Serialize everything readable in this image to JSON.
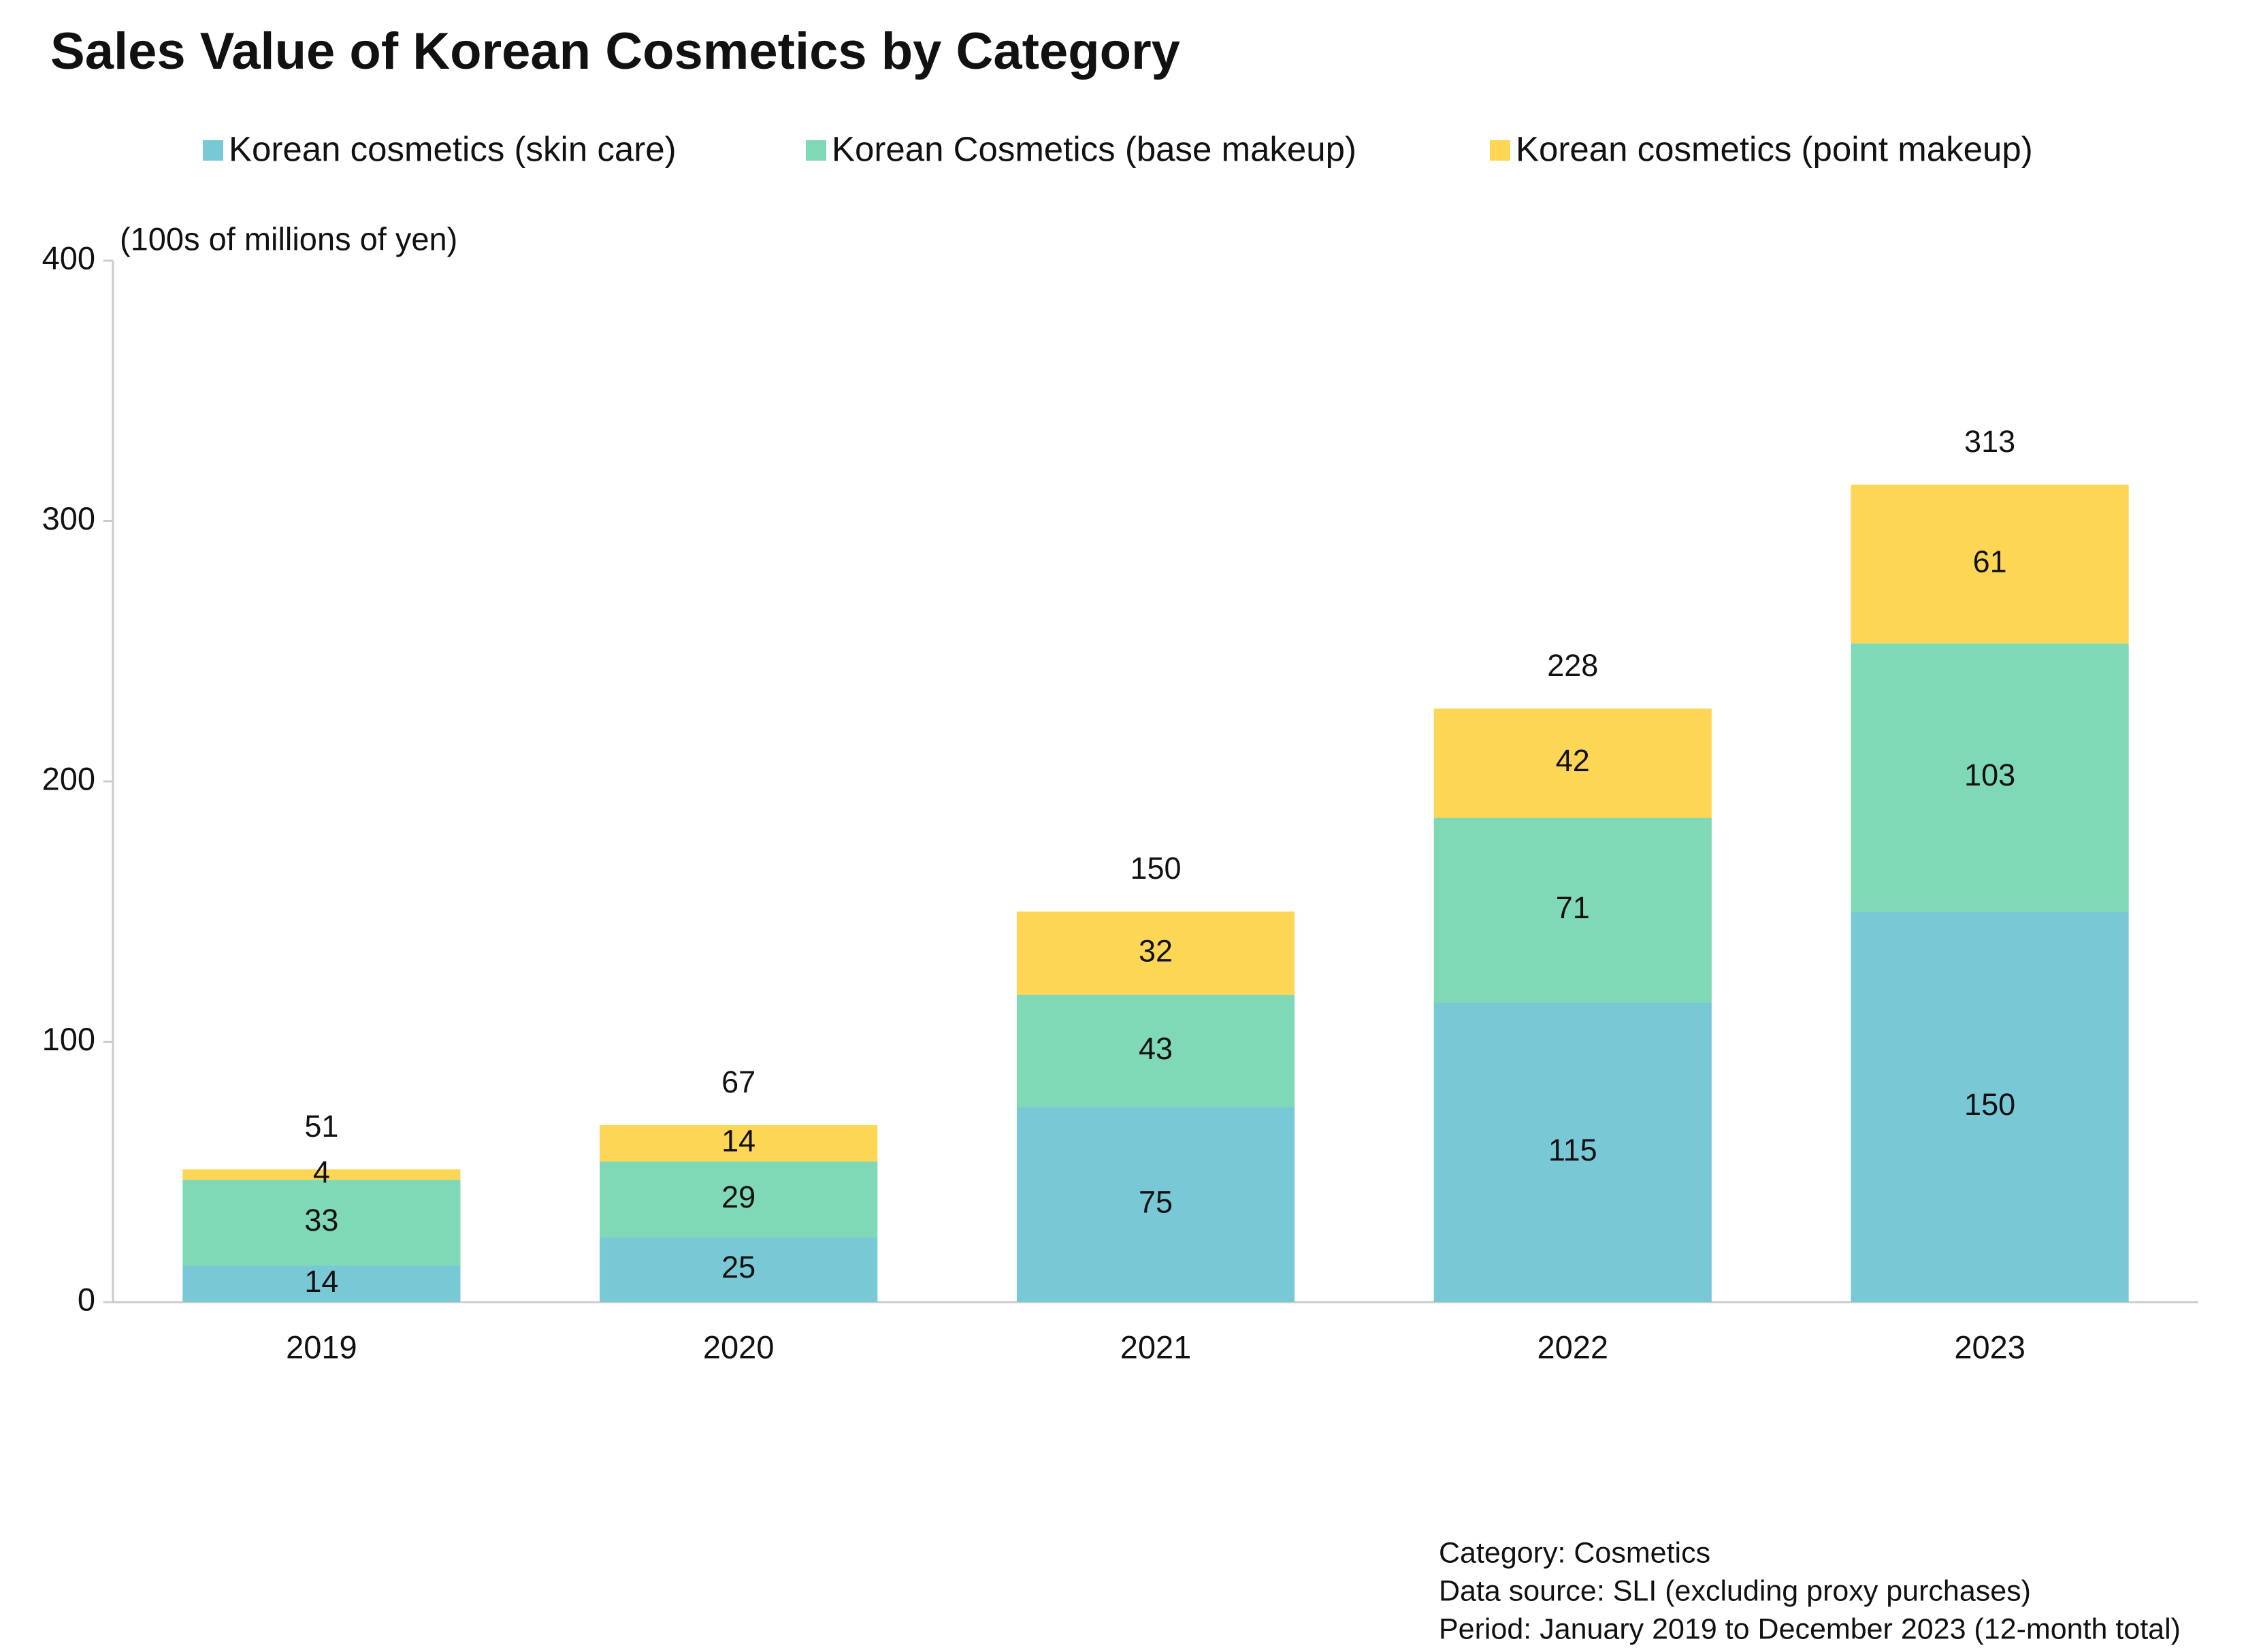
{
  "chart_data": {
    "type": "stacked_bar",
    "title": "Sales Value of Korean Cosmetics by Category",
    "y_axis_label": "(100s of millions of yen)",
    "categories": [
      "2019",
      "2020",
      "2021",
      "2022",
      "2023"
    ],
    "series": [
      {
        "name": "Korean cosmetics (skin care)",
        "color": "#79c8d6",
        "values": [
          14,
          25,
          75,
          115,
          150
        ]
      },
      {
        "name": "Korean Cosmetics (base makeup)",
        "color": "#7fd8b6",
        "values": [
          33,
          29,
          43,
          71,
          103
        ]
      },
      {
        "name": "Korean cosmetics (point makeup)",
        "color": "#fdd655",
        "values": [
          4,
          14,
          32,
          42,
          61
        ]
      }
    ],
    "totals": [
      51,
      67,
      150,
      228,
      313
    ],
    "ylim": [
      0,
      400
    ],
    "yticks": [
      0,
      100,
      200,
      300,
      400
    ],
    "grid": false,
    "legend": "top",
    "notes": [
      "Category: Cosmetics",
      "Data source: SLI (excluding proxy purchases)",
      "Period: January 2019 to December 2023 (12-month total)"
    ]
  }
}
